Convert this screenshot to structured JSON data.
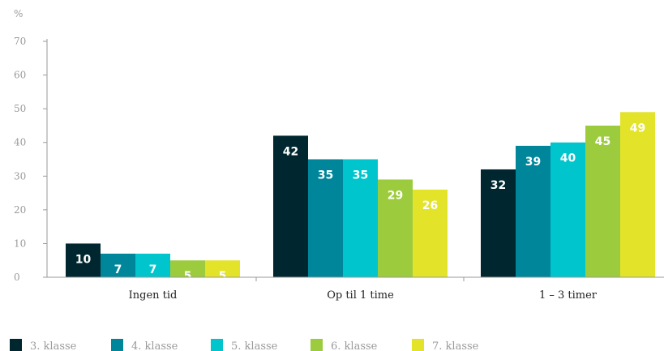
{
  "chart_data": {
    "type": "bar",
    "unit_label": "%",
    "ylim": [
      0,
      70
    ],
    "yticks": [
      0,
      10,
      20,
      30,
      40,
      50,
      60,
      70
    ],
    "categories": [
      "Ingen tid",
      "Op til 1 time",
      "1 – 3 timer"
    ],
    "series": [
      {
        "name": "3. klasse",
        "color": "#00272f",
        "values": [
          10,
          42,
          32
        ]
      },
      {
        "name": "4. klasse",
        "color": "#00869b",
        "values": [
          7,
          35,
          39
        ]
      },
      {
        "name": "5. klasse",
        "color": "#00c5cc",
        "values": [
          7,
          35,
          40
        ]
      },
      {
        "name": "6. klasse",
        "color": "#9ccc3e",
        "values": [
          5,
          29,
          45
        ]
      },
      {
        "name": "7. klasse",
        "color": "#e3e32a",
        "values": [
          5,
          26,
          49
        ]
      }
    ],
    "grid": false,
    "legend_position": "bottom-left"
  }
}
